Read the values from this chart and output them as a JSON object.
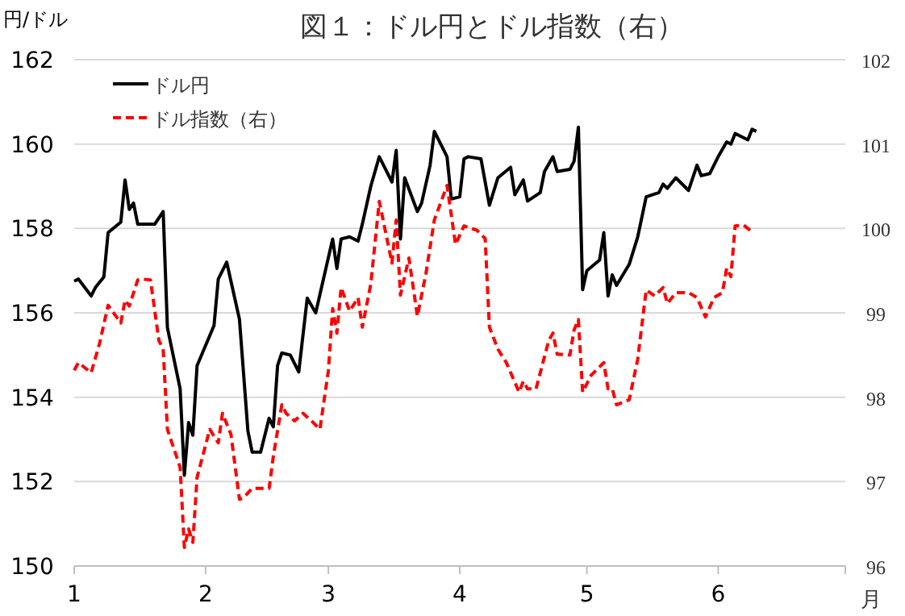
{
  "chart_data": {
    "type": "line",
    "title": "図１：ドル円とドル指数（右）",
    "ylabel": "円/ドル",
    "xlabel": "月",
    "xlim": [
      "--01-01",
      "--07-01"
    ],
    "xticks": [
      {
        "value": "--01-01",
        "label": "1"
      },
      {
        "value": "--02-01",
        "label": "2"
      },
      {
        "value": "--03-01",
        "label": "3"
      },
      {
        "value": "--04-01",
        "label": "4"
      },
      {
        "value": "--05-01",
        "label": "5"
      },
      {
        "value": "--06-01",
        "label": "6"
      },
      {
        "value": "--07-01",
        "label": null
      }
    ],
    "ylim": [
      150,
      162
    ],
    "yticks": [
      150,
      152,
      154,
      156,
      158,
      160,
      162
    ],
    "y2lim": [
      96,
      102
    ],
    "y2ticks": [
      96,
      97,
      98,
      99,
      100,
      101,
      102
    ],
    "grid": "y",
    "legend": "top left",
    "series": [
      {
        "name": "ドル円",
        "color": "#000000",
        "line_style": "solid",
        "x": [
          "--01-01",
          "--01-02",
          "--01-05",
          "--01-06",
          "--01-08",
          "--01-09",
          "--01-12",
          "--01-13",
          "--01-14",
          "--01-15",
          "--01-16",
          "--01-20",
          "--01-22",
          "--01-23",
          "--01-26",
          "--01-27",
          "--01-28",
          "--01-29",
          "--01-30",
          "--02-03",
          "--02-04",
          "--02-06",
          "--02-09",
          "--02-11",
          "--02-12",
          "--02-14",
          "--02-16",
          "--02-17",
          "--02-18",
          "--02-19",
          "--02-21",
          "--02-23",
          "--02-25",
          "--02-27",
          "--03-02",
          "--03-03",
          "--03-04",
          "--03-06",
          "--03-08",
          "--03-09",
          "--03-11",
          "--03-13",
          "--03-16",
          "--03-17",
          "--03-18",
          "--03-19",
          "--03-22",
          "--03-23",
          "--03-25",
          "--03-26",
          "--03-29",
          "--03-30",
          "--04-01",
          "--04-02",
          "--04-03",
          "--04-06",
          "--04-08",
          "--04-10",
          "--04-13",
          "--04-14",
          "--04-16",
          "--04-17",
          "--04-20",
          "--04-21",
          "--04-23",
          "--04-24",
          "--04-27",
          "--04-28",
          "--04-29",
          "--04-30",
          "--05-01",
          "--05-04",
          "--05-05",
          "--05-06",
          "--05-07",
          "--05-08",
          "--05-11",
          "--05-13",
          "--05-15",
          "--05-18",
          "--05-19",
          "--05-20",
          "--05-22",
          "--05-25",
          "--05-27",
          "--05-28",
          "--05-30",
          "--06-01",
          "--06-03",
          "--06-04",
          "--06-05",
          "--06-08",
          "--06-09",
          "--06-10"
        ],
        "values": [
          156.75,
          156.8,
          156.4,
          156.6,
          156.85,
          157.9,
          158.15,
          159.15,
          158.45,
          158.6,
          158.1,
          158.1,
          158.4,
          155.65,
          154.2,
          152.15,
          153.4,
          153.1,
          154.75,
          155.7,
          156.8,
          157.2,
          155.85,
          153.2,
          152.7,
          152.7,
          153.5,
          153.3,
          154.75,
          155.05,
          155.0,
          154.6,
          156.35,
          156.0,
          157.75,
          157.05,
          157.75,
          157.8,
          157.7,
          158.1,
          159.0,
          159.7,
          159.1,
          159.85,
          157.75,
          159.2,
          158.4,
          158.6,
          159.5,
          160.3,
          159.7,
          158.7,
          158.75,
          159.65,
          159.7,
          159.65,
          158.55,
          159.2,
          159.45,
          158.8,
          159.15,
          158.65,
          158.85,
          159.35,
          159.7,
          159.35,
          159.4,
          159.6,
          160.4,
          156.55,
          157.0,
          157.25,
          157.9,
          156.4,
          156.9,
          156.65,
          157.15,
          157.8,
          158.75,
          158.85,
          159.05,
          158.95,
          159.2,
          158.9,
          159.5,
          159.25,
          159.3,
          159.7,
          160.05,
          160.0,
          160.25,
          160.1,
          160.35,
          160.3
        ]
      },
      {
        "name": "ドル指数（右）",
        "color": "#ff0000",
        "line_style": "dashed",
        "axis": "y2",
        "x": [
          "--01-01",
          "--01-02",
          "--01-05",
          "--01-07",
          "--01-09",
          "--01-12",
          "--01-13",
          "--01-14",
          "--01-16",
          "--01-17",
          "--01-19",
          "--01-21",
          "--01-22",
          "--01-23",
          "--01-26",
          "--01-27",
          "--01-28",
          "--01-29",
          "--01-30",
          "--02-02",
          "--02-04",
          "--02-05",
          "--02-07",
          "--02-09",
          "--02-10",
          "--02-12",
          "--02-16",
          "--02-17",
          "--02-19",
          "--02-20",
          "--02-22",
          "--02-24",
          "--02-26",
          "--02-28",
          "--02-29",
          "--03-01",
          "--03-02",
          "--03-03",
          "--03-04",
          "--03-06",
          "--03-08",
          "--03-09",
          "--03-11",
          "--03-13",
          "--03-16",
          "--03-17",
          "--03-18",
          "--03-20",
          "--03-22",
          "--03-24",
          "--03-26",
          "--03-29",
          "--03-31",
          "--04-02",
          "--04-05",
          "--04-07",
          "--04-08",
          "--04-10",
          "--04-12",
          "--04-15",
          "--04-16",
          "--04-17",
          "--04-19",
          "--04-22",
          "--04-23",
          "--04-24",
          "--04-27",
          "--04-28",
          "--04-29",
          "--04-30",
          "--05-02",
          "--05-05",
          "--05-06",
          "--05-07",
          "--05-08",
          "--05-11",
          "--05-13",
          "--05-15",
          "--05-17",
          "--05-19",
          "--05-20",
          "--05-22",
          "--05-25",
          "--05-27",
          "--05-29",
          "--05-31",
          "--06-02",
          "--06-03",
          "--06-04",
          "--06-05",
          "--06-07",
          "--06-09"
        ],
        "values": [
          98.32,
          98.41,
          98.29,
          98.64,
          99.09,
          98.88,
          99.15,
          99.08,
          99.39,
          99.4,
          99.39,
          98.67,
          98.57,
          97.62,
          97.17,
          96.22,
          96.44,
          96.28,
          97.05,
          97.62,
          97.46,
          97.81,
          97.56,
          96.79,
          96.81,
          96.92,
          96.92,
          97.3,
          97.91,
          97.81,
          97.72,
          97.81,
          97.72,
          97.62,
          97.97,
          98.32,
          99.05,
          98.76,
          99.3,
          99.02,
          99.18,
          98.83,
          99.34,
          100.32,
          99.59,
          100.1,
          99.21,
          99.65,
          98.96,
          99.46,
          100.1,
          100.51,
          99.81,
          100.03,
          99.98,
          99.88,
          98.83,
          98.57,
          98.41,
          98.06,
          98.19,
          98.1,
          98.1,
          98.67,
          98.76,
          98.51,
          98.5,
          98.8,
          98.92,
          98.06,
          98.26,
          98.41,
          98.1,
          98.1,
          97.91,
          97.97,
          98.45,
          99.27,
          99.2,
          99.3,
          99.11,
          99.24,
          99.24,
          99.18,
          98.95,
          99.18,
          99.24,
          99.53,
          99.43,
          100.03,
          100.04,
          99.96
        ]
      }
    ]
  }
}
